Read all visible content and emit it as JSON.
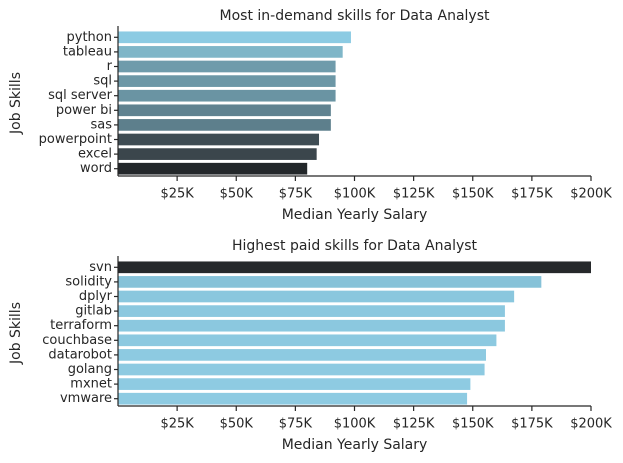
{
  "chart_data": [
    {
      "type": "bar",
      "orientation": "horizontal",
      "title": "Most in-demand skills for Data Analyst",
      "xlabel": "Median Yearly Salary",
      "ylabel": "Job Skills",
      "categories": [
        "python",
        "tableau",
        "r",
        "sql",
        "sql server",
        "power bi",
        "sas",
        "powerpoint",
        "excel",
        "word"
      ],
      "values": [
        98500,
        95000,
        92000,
        92000,
        92000,
        90000,
        90000,
        85000,
        84000,
        80000
      ],
      "colors": [
        "#8ccbe3",
        "#7fb6c8",
        "#6f9bab",
        "#6c97a6",
        "#6a94a3",
        "#5f8290",
        "#5d7f8c",
        "#3f4d54",
        "#3b464c",
        "#23272a"
      ],
      "xlim": [
        0,
        200000
      ],
      "xticks": [
        {
          "value": 25000,
          "label": "$25K"
        },
        {
          "value": 50000,
          "label": "$50K"
        },
        {
          "value": 75000,
          "label": "$75K"
        },
        {
          "value": 100000,
          "label": "$100K"
        },
        {
          "value": 125000,
          "label": "$125K"
        },
        {
          "value": 150000,
          "label": "$150K"
        },
        {
          "value": 175000,
          "label": "$175K"
        },
        {
          "value": 200000,
          "label": "$200K"
        }
      ]
    },
    {
      "type": "bar",
      "orientation": "horizontal",
      "title": "Highest paid skills for Data Analyst",
      "xlabel": "Median Yearly Salary",
      "ylabel": "Job Skills",
      "categories": [
        "svn",
        "solidity",
        "dplyr",
        "gitlab",
        "terraform",
        "couchbase",
        "datarobot",
        "golang",
        "mxnet",
        "vmware"
      ],
      "values": [
        200000,
        179000,
        167500,
        163600,
        163600,
        160000,
        155600,
        155000,
        149000,
        147600
      ],
      "colors": [
        "#26292b",
        "#86c2d8",
        "#8ac7de",
        "#8bc8df",
        "#8bc8df",
        "#8cc9e0",
        "#8dcae1",
        "#8dcae1",
        "#8ecbe2",
        "#8ecbe2"
      ],
      "xlim": [
        0,
        200000
      ],
      "xticks": [
        {
          "value": 25000,
          "label": "$25K"
        },
        {
          "value": 50000,
          "label": "$50K"
        },
        {
          "value": 75000,
          "label": "$75K"
        },
        {
          "value": 100000,
          "label": "$100K"
        },
        {
          "value": 125000,
          "label": "$125K"
        },
        {
          "value": 150000,
          "label": "$150K"
        },
        {
          "value": 175000,
          "label": "$175K"
        },
        {
          "value": 200000,
          "label": "$200K"
        }
      ]
    }
  ]
}
